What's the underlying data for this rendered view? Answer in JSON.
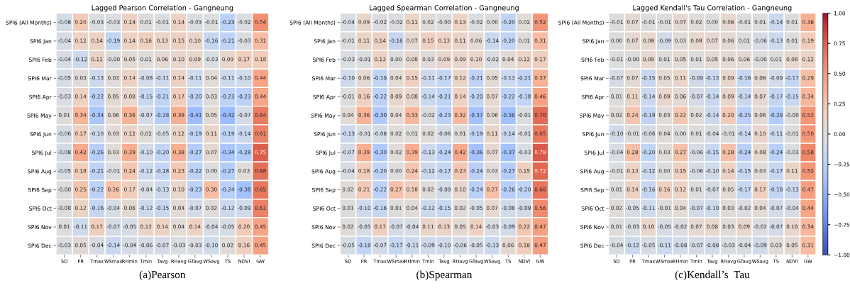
{
  "chart_data": [
    {
      "type": "heatmap",
      "title": "Lagged Pearson Correlation - Gangneung",
      "annotations": [
        "(a)Pearson"
      ],
      "categories": [
        "SD",
        "PR",
        "Tmax",
        "WSmax",
        "RHmin",
        "Tmin",
        "Tavg",
        "RHavg",
        "GTavg",
        "WSavg",
        "TS",
        "NDVI",
        "GW"
      ],
      "y_categories": [
        "SPI6 (All Months)",
        "SPI6 Jan",
        "SPI6 Feb",
        "SPI6 Mar",
        "SPI6 Apr",
        "SPI6 May",
        "SPI6 Jun",
        "SPI6 Jul",
        "SPI6 Aug",
        "SPI6 Sep",
        "SPI6 Oct",
        "SPI6 Nov",
        "SPI6 Dec"
      ],
      "cells": [
        [
          -0.08,
          0.2,
          -0.03,
          -0.03,
          0.14,
          0.01,
          -0.01,
          0.14,
          -0.03,
          -0.01,
          -0.23,
          -0.02,
          0.54
        ],
        [
          -0.04,
          0.12,
          0.14,
          -0.19,
          0.14,
          0.16,
          0.13,
          0.15,
          0.1,
          -0.16,
          -0.21,
          -0.03,
          0.31
        ],
        [
          -0.04,
          -0.12,
          0.11,
          0,
          0.05,
          0.01,
          0.06,
          0.1,
          0.09,
          -0.03,
          0.09,
          0.17,
          0.18
        ],
        [
          -0.05,
          0.03,
          -0.13,
          0.03,
          0.14,
          -0.08,
          -0.11,
          0.14,
          -0.11,
          0.04,
          -0.11,
          -0.1,
          0.44
        ],
        [
          -0.03,
          0.14,
          -0.22,
          0.05,
          0.08,
          -0.15,
          -0.21,
          0.17,
          -0.2,
          0.03,
          -0.23,
          -0.23,
          0.44
        ],
        [
          0.01,
          0.34,
          -0.34,
          0.06,
          0.36,
          -0.07,
          -0.28,
          0.39,
          -0.41,
          0.05,
          -0.42,
          -0.07,
          0.64
        ],
        [
          -0.06,
          0.17,
          -0.1,
          0.03,
          0.12,
          0.02,
          -0.05,
          0.12,
          -0.19,
          0.11,
          -0.19,
          -0.14,
          0.61
        ],
        [
          -0.08,
          0.42,
          -0.26,
          0.03,
          0.39,
          -0.1,
          -0.2,
          0.38,
          -0.27,
          0.07,
          -0.34,
          -0.28,
          0.75
        ],
        [
          -0.05,
          0.18,
          -0.21,
          -0.01,
          0.24,
          -0.12,
          -0.18,
          0.23,
          -0.22,
          0.0,
          -0.27,
          0.03,
          0.68
        ],
        [
          0,
          0.25,
          -0.22,
          0.26,
          0.17,
          -0.04,
          -0.13,
          0.1,
          -0.23,
          0.3,
          -0.24,
          -0.38,
          0.65
        ],
        [
          0,
          0.12,
          -0.16,
          -0.04,
          0.06,
          -0.12,
          -0.15,
          0.04,
          -0.07,
          0.02,
          -0.12,
          -0.09,
          0.61
        ],
        [
          0.01,
          -0.11,
          0.17,
          -0.07,
          -0.05,
          0.12,
          0.14,
          0.04,
          0.14,
          -0.04,
          -0.05,
          0.2,
          0.45
        ],
        [
          -0.03,
          0.05,
          -0.04,
          -0.14,
          -0.04,
          -0.06,
          -0.07,
          -0.03,
          -0.03,
          -0.1,
          0.02,
          0.16,
          0.45
        ]
      ],
      "cell_labels": [
        [
          "-0.08",
          "0.20",
          "-0.03",
          "-0.03",
          "0.14",
          "0.01",
          "-0.01",
          "0.14",
          "-0.03",
          "-0.01",
          "-0.23",
          "-0.02",
          "0.54"
        ],
        [
          "-0.04",
          "0.12",
          "0.14",
          "-0.19",
          "0.14",
          "0.16",
          "0.13",
          "0.15",
          "0.10",
          "-0.16",
          "-0.21",
          "-0.03",
          "0.31"
        ],
        [
          "-0.04",
          "-0.12",
          "0.11",
          "-0.00",
          "0.05",
          "0.01",
          "0.06",
          "0.10",
          "0.09",
          "-0.03",
          "0.09",
          "0.17",
          "0.18"
        ],
        [
          "-0.05",
          "0.03",
          "-0.13",
          "0.03",
          "0.14",
          "-0.08",
          "-0.11",
          "0.14",
          "-0.11",
          "0.04",
          "-0.11",
          "-0.10",
          "0.44"
        ],
        [
          "-0.03",
          "0.14",
          "-0.22",
          "0.05",
          "0.08",
          "-0.15",
          "-0.21",
          "0.17",
          "-0.20",
          "0.03",
          "-0.23",
          "-0.23",
          "0.44"
        ],
        [
          "0.01",
          "0.34",
          "-0.34",
          "0.06",
          "0.36",
          "-0.07",
          "-0.28",
          "0.39",
          "-0.41",
          "0.05",
          "-0.42",
          "-0.07",
          "0.64"
        ],
        [
          "-0.06",
          "0.17",
          "-0.10",
          "0.03",
          "0.12",
          "0.02",
          "-0.05",
          "0.12",
          "-0.19",
          "0.11",
          "-0.19",
          "-0.14",
          "0.61"
        ],
        [
          "-0.08",
          "0.42",
          "-0.26",
          "0.03",
          "0.39",
          "-0.10",
          "-0.20",
          "0.38",
          "-0.27",
          "0.07",
          "-0.34",
          "-0.28",
          "0.75"
        ],
        [
          "-0.05",
          "0.18",
          "-0.21",
          "-0.01",
          "0.24",
          "-0.12",
          "-0.18",
          "0.23",
          "-0.22",
          "0.00",
          "-0.27",
          "0.03",
          "0.68"
        ],
        [
          "-0.00",
          "0.25",
          "-0.22",
          "0.26",
          "0.17",
          "-0.04",
          "-0.13",
          "0.10",
          "-0.23",
          "0.30",
          "-0.24",
          "-0.38",
          "0.65"
        ],
        [
          "-0.00",
          "0.12",
          "-0.16",
          "-0.04",
          "0.06",
          "-0.12",
          "-0.15",
          "0.04",
          "-0.07",
          "0.02",
          "-0.12",
          "-0.09",
          "0.61"
        ],
        [
          "0.01",
          "-0.11",
          "0.17",
          "-0.07",
          "-0.05",
          "0.12",
          "0.14",
          "0.04",
          "0.14",
          "-0.04",
          "-0.05",
          "0.20",
          "0.45"
        ],
        [
          "-0.03",
          "0.05",
          "-0.04",
          "-0.14",
          "-0.04",
          "-0.06",
          "-0.07",
          "-0.03",
          "-0.03",
          "-0.10",
          "0.02",
          "0.16",
          "0.45"
        ]
      ]
    },
    {
      "type": "heatmap",
      "title": "Lagged Spearman Correlation - Gangneung",
      "annotations": [
        "(b)Spearman"
      ],
      "categories": [
        "SD",
        "PR",
        "Tmax",
        "WSmax",
        "RHmin",
        "Tmin",
        "Tavg",
        "RHavg",
        "GTavg",
        "WSavg",
        "TS",
        "NDVI",
        "GW"
      ],
      "y_categories": [
        "SPI6 (All Months)",
        "SPI6 Jan",
        "SPI6 Feb",
        "SPI6 Mar",
        "SPI6 Apr",
        "SPI6 May",
        "SPI6 Jun",
        "SPI6 Jul",
        "SPI6 Aug",
        "SPI6 Sep",
        "SPI6 Oct",
        "SPI6 Nov",
        "SPI6 Dec"
      ],
      "cells": [
        [
          -0.04,
          0.09,
          -0.02,
          -0.02,
          0.11,
          0.02,
          0,
          0.13,
          -0.02,
          0.0,
          -0.2,
          0.02,
          0.52
        ],
        [
          -0.01,
          0.11,
          0.14,
          -0.16,
          0.07,
          0.15,
          0.13,
          0.11,
          0.06,
          -0.14,
          -0.2,
          0.01,
          0.31
        ],
        [
          -0.03,
          -0.01,
          0.13,
          0.0,
          0.08,
          0.03,
          0.09,
          0.09,
          0.1,
          -0.02,
          0.04,
          0.12,
          0.17
        ],
        [
          -0.1,
          0.06,
          -0.19,
          0.04,
          0.15,
          -0.11,
          -0.17,
          0.12,
          -0.21,
          0.05,
          -0.13,
          -0.21,
          0.37
        ],
        [
          -0.01,
          0.16,
          -0.22,
          0.09,
          0.08,
          -0.14,
          -0.21,
          0.14,
          -0.2,
          0.07,
          -0.22,
          -0.18,
          0.46
        ],
        [
          0.04,
          0.36,
          -0.3,
          0.04,
          0.33,
          -0.02,
          -0.23,
          0.32,
          -0.37,
          0.06,
          -0.38,
          -0.01,
          0.7
        ],
        [
          -0.13,
          -0.01,
          -0.08,
          0.02,
          0.01,
          0.02,
          -0.06,
          0.01,
          -0.19,
          0.11,
          -0.14,
          -0.01,
          0.65
        ],
        [
          -0.07,
          0.39,
          -0.3,
          0.02,
          0.39,
          -0.13,
          -0.24,
          0.42,
          -0.36,
          0.07,
          -0.37,
          -0.03,
          0.78
        ],
        [
          -0.04,
          0.18,
          -0.2,
          0.0,
          0.24,
          -0.12,
          -0.17,
          0.23,
          -0.24,
          0.03,
          -0.27,
          0.15,
          0.72
        ],
        [
          0.02,
          0.21,
          -0.22,
          0.27,
          0.18,
          0.02,
          -0.09,
          0.1,
          -0.24,
          0.27,
          -0.26,
          -0.2,
          0.66
        ],
        [
          0.01,
          -0.1,
          -0.16,
          0.01,
          0.04,
          -0.12,
          -0.15,
          0.02,
          -0.05,
          0.07,
          -0.08,
          -0.09,
          0.56
        ],
        [
          0.02,
          -0.05,
          0.17,
          -0.07,
          -0.04,
          0.11,
          0.13,
          0.05,
          0.14,
          -0.03,
          -0.09,
          0.22,
          0.47
        ],
        [
          -0.05,
          -0.18,
          -0.07,
          -0.17,
          -0.11,
          -0.09,
          -0.1,
          -0.06,
          -0.05,
          -0.13,
          0.06,
          0.18,
          0.47
        ]
      ],
      "cell_labels": [
        [
          "-0.04",
          "0.09",
          "-0.02",
          "-0.02",
          "0.11",
          "0.02",
          "-0.00",
          "0.13",
          "-0.02",
          "0.00",
          "-0.20",
          "0.02",
          "0.52"
        ],
        [
          "-0.01",
          "0.11",
          "0.14",
          "-0.16",
          "0.07",
          "0.15",
          "0.13",
          "0.11",
          "0.06",
          "-0.14",
          "-0.20",
          "0.01",
          "0.31"
        ],
        [
          "-0.03",
          "-0.01",
          "0.13",
          "0.00",
          "0.08",
          "0.03",
          "0.09",
          "0.09",
          "0.10",
          "-0.02",
          "0.04",
          "0.12",
          "0.17"
        ],
        [
          "-0.10",
          "0.06",
          "-0.19",
          "0.04",
          "0.15",
          "-0.11",
          "-0.17",
          "0.12",
          "-0.21",
          "0.05",
          "-0.13",
          "-0.21",
          "0.37"
        ],
        [
          "-0.01",
          "0.16",
          "-0.22",
          "0.09",
          "0.08",
          "-0.14",
          "-0.21",
          "0.14",
          "-0.20",
          "0.07",
          "-0.22",
          "-0.18",
          "0.46"
        ],
        [
          "0.04",
          "0.36",
          "-0.30",
          "0.04",
          "0.33",
          "-0.02",
          "-0.23",
          "0.32",
          "-0.37",
          "0.06",
          "-0.38",
          "-0.01",
          "0.70"
        ],
        [
          "-0.13",
          "-0.01",
          "-0.08",
          "0.02",
          "0.01",
          "0.02",
          "-0.06",
          "0.01",
          "-0.19",
          "0.11",
          "-0.14",
          "-0.01",
          "0.65"
        ],
        [
          "-0.07",
          "0.39",
          "-0.30",
          "0.02",
          "0.39",
          "-0.13",
          "-0.24",
          "0.42",
          "-0.36",
          "0.07",
          "-0.37",
          "-0.03",
          "0.78"
        ],
        [
          "-0.04",
          "0.18",
          "-0.20",
          "0.00",
          "0.24",
          "-0.12",
          "-0.17",
          "0.23",
          "-0.24",
          "0.03",
          "-0.27",
          "0.15",
          "0.72"
        ],
        [
          "0.02",
          "0.21",
          "-0.22",
          "0.27",
          "0.18",
          "0.02",
          "-0.09",
          "0.10",
          "-0.24",
          "0.27",
          "-0.26",
          "-0.20",
          "0.66"
        ],
        [
          "0.01",
          "-0.10",
          "-0.16",
          "0.01",
          "0.04",
          "-0.12",
          "-0.15",
          "0.02",
          "-0.05",
          "0.07",
          "-0.08",
          "-0.09",
          "0.56"
        ],
        [
          "0.02",
          "-0.05",
          "0.17",
          "-0.07",
          "-0.04",
          "0.11",
          "0.13",
          "0.05",
          "0.14",
          "-0.03",
          "-0.09",
          "0.22",
          "0.47"
        ],
        [
          "-0.05",
          "-0.18",
          "-0.07",
          "-0.17",
          "-0.11",
          "-0.09",
          "-0.10",
          "-0.06",
          "-0.05",
          "-0.13",
          "0.06",
          "0.18",
          "0.47"
        ]
      ]
    },
    {
      "type": "heatmap",
      "title": "Lagged Kendall's Tau Correlation - Gangneung",
      "annotations": [
        "(c)Kendall’s  Tau"
      ],
      "categories": [
        "SD",
        "PR",
        "Tmax",
        "WSmax",
        "RHmin",
        "Tmin",
        "Tavg",
        "RHavg",
        "GTavg",
        "WSavg",
        "TS",
        "NDVI",
        "GW"
      ],
      "y_categories": [
        "SPI6 (All Months)",
        "SPI6 Jan",
        "SPI6 Feb",
        "SPI6 Mar",
        "SPI6 Apr",
        "SPI6 May",
        "SPI6 Jun",
        "SPI6 Jul",
        "SPI6 Aug",
        "SPI6 Sep",
        "SPI6 Oct",
        "SPI6 Nov",
        "SPI6 Dec"
      ],
      "clim": [
        -1,
        1
      ],
      "cticks": [
        {
          "value": -1,
          "label": "−1.00"
        },
        {
          "value": -0.75,
          "label": "−0.75"
        },
        {
          "value": -0.5,
          "label": "−0.50"
        },
        {
          "value": -0.25,
          "label": "−0.25"
        },
        {
          "value": 0,
          "label": "0.00"
        },
        {
          "value": 0.25,
          "label": "0.25"
        },
        {
          "value": 0.5,
          "label": "0.50"
        },
        {
          "value": 0.75,
          "label": "0.75"
        },
        {
          "value": 1,
          "label": "1.00"
        }
      ],
      "cells": [
        [
          -0.01,
          0.07,
          -0.01,
          -0.01,
          0.07,
          0.02,
          0.0,
          0.08,
          -0.01,
          0.01,
          -0.14,
          0.01,
          0.38
        ],
        [
          0.0,
          0.07,
          0.08,
          -0.09,
          0.03,
          0.08,
          0.07,
          0.06,
          0.01,
          -0.06,
          -0.13,
          0.01,
          0.19
        ],
        [
          -0.01,
          0,
          0.08,
          0.01,
          0.05,
          0.01,
          0.05,
          0.06,
          0.06,
          0,
          0.01,
          0.08,
          0.12
        ],
        [
          -0.07,
          0.07,
          -0.15,
          0.05,
          0.11,
          -0.09,
          -0.13,
          0.09,
          -0.16,
          0.06,
          -0.09,
          -0.17,
          0.29
        ],
        [
          0.01,
          0.11,
          -0.14,
          0.09,
          0.06,
          -0.07,
          -0.14,
          0.09,
          -0.14,
          0.07,
          -0.17,
          -0.15,
          0.34
        ],
        [
          0.02,
          0.24,
          -0.19,
          0.03,
          0.22,
          0.02,
          -0.14,
          0.2,
          -0.25,
          0.06,
          -0.28,
          0,
          0.52
        ],
        [
          -0.1,
          -0.01,
          -0.06,
          0.04,
          0.0,
          0.01,
          -0.04,
          -0.01,
          -0.14,
          0.1,
          -0.11,
          -0.01,
          0.5
        ],
        [
          -0.04,
          0.28,
          -0.2,
          0.03,
          0.27,
          -0.06,
          -0.15,
          0.28,
          -0.24,
          0.08,
          -0.24,
          -0.03,
          0.58
        ],
        [
          -0.01,
          0.13,
          -0.12,
          0.0,
          0.15,
          -0.06,
          -0.1,
          0.14,
          -0.15,
          0.03,
          -0.17,
          0.11,
          0.52
        ],
        [
          0.01,
          0.14,
          -0.16,
          0.16,
          0.12,
          0.01,
          -0.07,
          0.05,
          -0.17,
          0.17,
          -0.18,
          -0.13,
          0.47
        ],
        [
          0.02,
          -0.05,
          -0.11,
          -0.01,
          0.04,
          -0.07,
          -0.1,
          0.03,
          -0.02,
          0.04,
          -0.07,
          -0.04,
          0.44
        ],
        [
          0.01,
          -0.03,
          0.1,
          -0.05,
          -0.02,
          0.07,
          0.08,
          0.03,
          0.09,
          -0.02,
          -0.07,
          0.1,
          0.34
        ],
        [
          -0.04,
          -0.12,
          -0.05,
          -0.11,
          -0.08,
          -0.07,
          -0.08,
          -0.03,
          -0.04,
          -0.09,
          0.03,
          0.05,
          0.31
        ]
      ],
      "cell_labels": [
        [
          "-0.01",
          "0.07",
          "-0.01",
          "-0.01",
          "0.07",
          "0.02",
          "0.00",
          "0.08",
          "-0.01",
          "0.01",
          "-0.14",
          "0.01",
          "0.38"
        ],
        [
          "0.00",
          "0.07",
          "0.08",
          "-0.09",
          "0.03",
          "0.08",
          "0.07",
          "0.06",
          "0.01",
          "-0.06",
          "-0.13",
          "0.01",
          "0.19"
        ],
        [
          "-0.01",
          "-0.00",
          "0.08",
          "0.01",
          "0.05",
          "0.01",
          "0.05",
          "0.06",
          "0.06",
          "-0.00",
          "0.01",
          "0.08",
          "0.12"
        ],
        [
          "-0.07",
          "0.07",
          "-0.15",
          "0.05",
          "0.11",
          "-0.09",
          "-0.13",
          "0.09",
          "-0.16",
          "0.06",
          "-0.09",
          "-0.17",
          "0.29"
        ],
        [
          "0.01",
          "0.11",
          "-0.14",
          "0.09",
          "0.06",
          "-0.07",
          "-0.14",
          "0.09",
          "-0.14",
          "0.07",
          "-0.17",
          "-0.15",
          "0.34"
        ],
        [
          "0.02",
          "0.24",
          "-0.19",
          "0.03",
          "0.22",
          "0.02",
          "-0.14",
          "0.20",
          "-0.25",
          "0.06",
          "-0.28",
          "-0.00",
          "0.52"
        ],
        [
          "-0.10",
          "-0.01",
          "-0.06",
          "0.04",
          "0.00",
          "0.01",
          "-0.04",
          "-0.01",
          "-0.14",
          "0.10",
          "-0.11",
          "-0.01",
          "0.50"
        ],
        [
          "-0.04",
          "0.28",
          "-0.20",
          "0.03",
          "0.27",
          "-0.06",
          "-0.15",
          "0.28",
          "-0.24",
          "0.08",
          "-0.24",
          "-0.03",
          "0.58"
        ],
        [
          "-0.01",
          "0.13",
          "-0.12",
          "0.00",
          "0.15",
          "-0.06",
          "-0.10",
          "0.14",
          "-0.15",
          "0.03",
          "-0.17",
          "0.11",
          "0.52"
        ],
        [
          "0.01",
          "0.14",
          "-0.16",
          "0.16",
          "0.12",
          "0.01",
          "-0.07",
          "0.05",
          "-0.17",
          "0.17",
          "-0.18",
          "-0.13",
          "0.47"
        ],
        [
          "0.02",
          "-0.05",
          "-0.11",
          "-0.01",
          "0.04",
          "-0.07",
          "-0.10",
          "0.03",
          "-0.02",
          "0.04",
          "-0.07",
          "-0.04",
          "0.44"
        ],
        [
          "0.01",
          "-0.03",
          "0.10",
          "-0.05",
          "-0.02",
          "0.07",
          "0.08",
          "0.03",
          "0.09",
          "-0.02",
          "-0.07",
          "0.10",
          "0.34"
        ],
        [
          "-0.04",
          "-0.12",
          "-0.05",
          "-0.11",
          "-0.08",
          "-0.07",
          "-0.08",
          "-0.03",
          "-0.04",
          "-0.09",
          "0.03",
          "0.05",
          "0.31"
        ]
      ]
    }
  ]
}
